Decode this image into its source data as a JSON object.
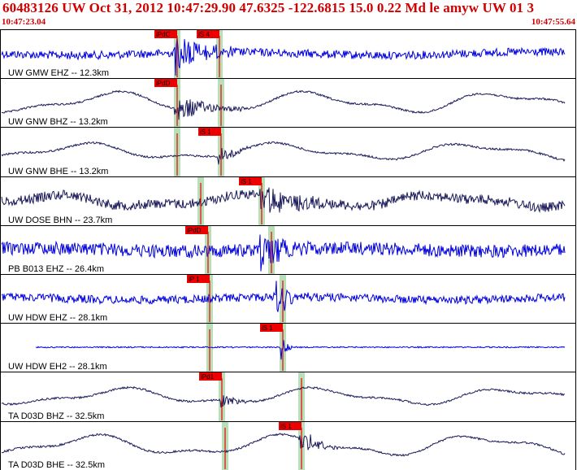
{
  "header": {
    "title": "60483126 UW Oct 31, 2012 10:47:29.90    47.6325 -122.6815 15.0 0.22 Md le amyw UW 01    3",
    "start_time": "10:47:23.04",
    "end_time": "10:47:55.64"
  },
  "colors": {
    "text_red": "#d00000",
    "trace_blue": "#0000dd",
    "trace_navy": "#1a1a5a",
    "pick_bar": "#b8e0b8",
    "pick_flag": "#ee0000"
  },
  "panels": [
    {
      "label": "UW GMW EHZ -- 12.3km",
      "color": "blue",
      "style": "hf",
      "amp": 5,
      "burst": [
        215,
        290,
        30
      ],
      "picks": [
        {
          "label": "iPdC",
          "x": 218
        },
        {
          "label": "iS 4",
          "x": 270
        }
      ]
    },
    {
      "label": "UW GNW BHZ -- 13.2km",
      "color": "navy",
      "style": "lf",
      "amp": 5,
      "burst": [
        215,
        300,
        20
      ],
      "picks": [
        {
          "label": "iPdD",
          "x": 218
        },
        {
          "label": "",
          "x": 272
        }
      ]
    },
    {
      "label": "UW GNW BHE -- 13.2km",
      "color": "navy",
      "style": "lf",
      "amp": 4,
      "burst": [
        268,
        310,
        15
      ],
      "picks": [
        {
          "label": "",
          "x": 218
        },
        {
          "label": "iS 1",
          "x": 272
        }
      ]
    },
    {
      "label": "UW DOSE BHN -- 23.7km",
      "color": "navy",
      "style": "mixed",
      "amp": 6,
      "burst": [
        320,
        400,
        25
      ],
      "picks": [
        {
          "label": "",
          "x": 247
        },
        {
          "label": "iS 1",
          "x": 322
        }
      ]
    },
    {
      "label": "PB B013 EHZ -- 26.4km",
      "color": "blue",
      "style": "hf",
      "amp": 8,
      "burst": [
        320,
        380,
        28
      ],
      "picks": [
        {
          "label": "iPdD",
          "x": 256
        },
        {
          "label": "",
          "x": 334
        }
      ]
    },
    {
      "label": "UW HDW EHZ -- 28.1km",
      "color": "blue",
      "style": "hf",
      "amp": 5,
      "burst": [
        340,
        380,
        25
      ],
      "picks": [
        {
          "label": "iP 1",
          "x": 258
        },
        {
          "label": "",
          "x": 348
        }
      ]
    },
    {
      "label": "UW HDW EH2 -- 28.1km",
      "color": "blue",
      "style": "flat",
      "amp": 1,
      "burst": [
        345,
        360,
        20
      ],
      "picks": [
        {
          "label": "",
          "x": 258
        },
        {
          "label": "iS 1",
          "x": 348
        }
      ]
    },
    {
      "label": "TA D03D BHZ -- 32.5km",
      "color": "navy",
      "style": "lf",
      "amp": 4,
      "burst": [
        272,
        310,
        10
      ],
      "picks": [
        {
          "label": "iPd1",
          "x": 273
        },
        {
          "label": "",
          "x": 371
        }
      ]
    },
    {
      "label": "TA D03D BHE -- 32.5km",
      "color": "navy",
      "style": "lf",
      "amp": 5,
      "burst": [
        368,
        420,
        18
      ],
      "picks": [
        {
          "label": "",
          "x": 277
        },
        {
          "label": "iS 1",
          "x": 371
        }
      ]
    }
  ]
}
